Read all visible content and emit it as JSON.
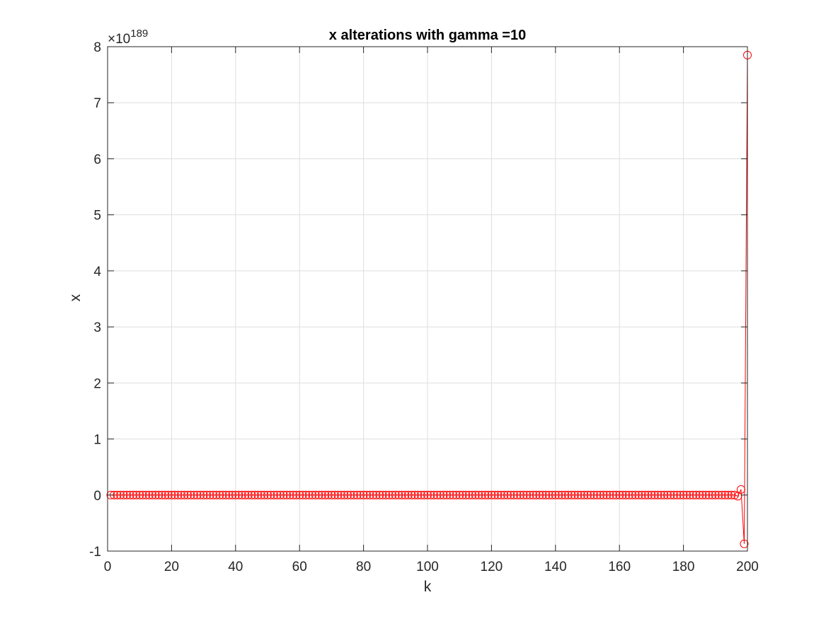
{
  "chart_data": {
    "type": "line",
    "title": "x alterations with gamma =10",
    "xlabel": "k",
    "ylabel": "x",
    "y_exponent": {
      "times": "×10",
      "power": "189"
    },
    "xlim": [
      0,
      200
    ],
    "ylim": [
      -1,
      8
    ],
    "x_scale_factor": 1,
    "y_scale_factor": 1e+189,
    "xticks": [
      0,
      20,
      40,
      60,
      80,
      100,
      120,
      140,
      160,
      180,
      200
    ],
    "yticks": [
      -1,
      0,
      1,
      2,
      3,
      4,
      5,
      6,
      7,
      8
    ],
    "xtick_labels": [
      "0",
      "20",
      "40",
      "60",
      "80",
      "100",
      "120",
      "140",
      "160",
      "180",
      "200"
    ],
    "ytick_labels": [
      "-1",
      "0",
      "1",
      "2",
      "3",
      "4",
      "5",
      "6",
      "7",
      "8"
    ],
    "grid": true,
    "marker": "circle",
    "colors": {
      "series": "#ff0000",
      "grid": "#dedede",
      "axis": "#262626"
    },
    "series": [
      {
        "x_start": 1,
        "x_end": 196,
        "constant_value": 0
      },
      {
        "x": [
          197,
          198,
          199,
          200
        ],
        "y": [
          -0.02,
          0.1,
          -0.87,
          7.85
        ]
      }
    ]
  }
}
